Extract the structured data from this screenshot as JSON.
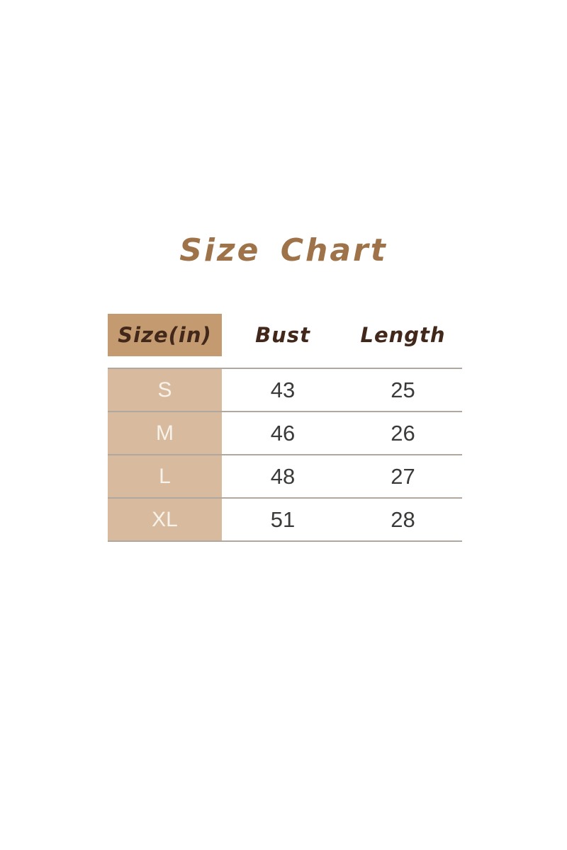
{
  "title": "Size Chart",
  "table": {
    "headers": [
      "Size(in)",
      "Bust",
      "Length"
    ],
    "rows": [
      {
        "size": "S",
        "bust": "43",
        "length": "25"
      },
      {
        "size": "M",
        "bust": "46",
        "length": "26"
      },
      {
        "size": "L",
        "bust": "48",
        "length": "27"
      },
      {
        "size": "XL",
        "bust": "51",
        "length": "28"
      }
    ]
  },
  "chart_data": {
    "type": "table",
    "title": "Size Chart",
    "unit": "inches",
    "columns": [
      "Size(in)",
      "Bust",
      "Length"
    ],
    "rows": [
      [
        "S",
        43,
        25
      ],
      [
        "M",
        46,
        26
      ],
      [
        "L",
        48,
        27
      ],
      [
        "XL",
        51,
        28
      ]
    ]
  },
  "colors": {
    "background": "#ffffff",
    "title_brown": "#9e7349",
    "header_text_brown": "#42281a",
    "header_cell_bg": "#c49b70",
    "size_cell_bg": "#d8bb9e",
    "size_text": "#f7f2ea",
    "value_text": "#3a3a38",
    "divider": "#b0a89f"
  }
}
